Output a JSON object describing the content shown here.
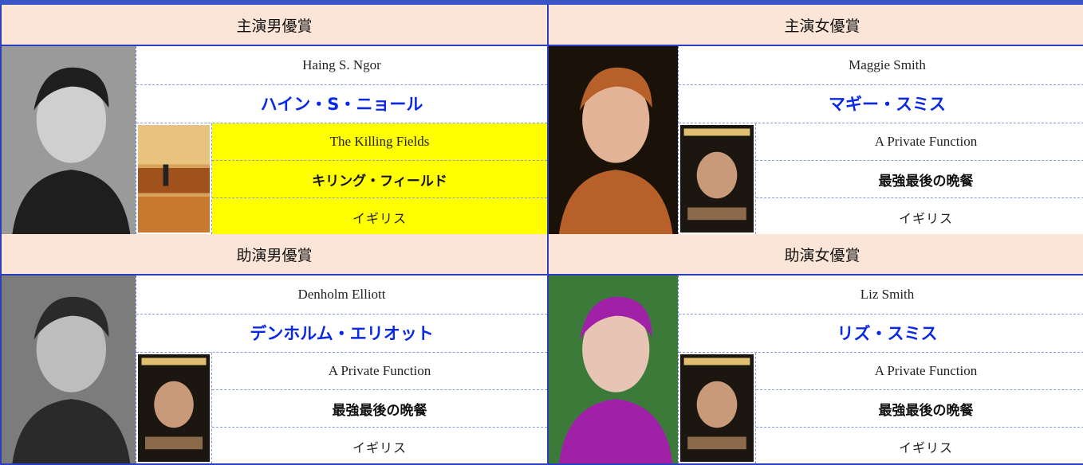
{
  "awards": [
    {
      "category": "主演男優賞",
      "actor_en": "Haing S. Ngor",
      "actor_ja": "ハイン・S・ニョール",
      "film_en": "The Killing Fields",
      "film_ja": "キリング・フィールド",
      "country": "イギリス"
    },
    {
      "category": "主演女優賞",
      "actor_en": "Maggie Smith",
      "actor_ja": "マギー・スミス",
      "film_en": "A Private Function",
      "film_ja": "最強最後の晩餐",
      "country": "イギリス"
    },
    {
      "category": "助演男優賞",
      "actor_en": "Denholm Elliott",
      "actor_ja": "デンホルム・エリオット",
      "film_en": "A Private Function",
      "film_ja": "最強最後の晩餐",
      "country": "イギリス"
    },
    {
      "category": "助演女優賞",
      "actor_en": "Liz Smith",
      "actor_ja": "リズ・スミス",
      "film_en": "A Private Function",
      "film_ja": "最強最後の晩餐",
      "country": "イギリス"
    }
  ]
}
